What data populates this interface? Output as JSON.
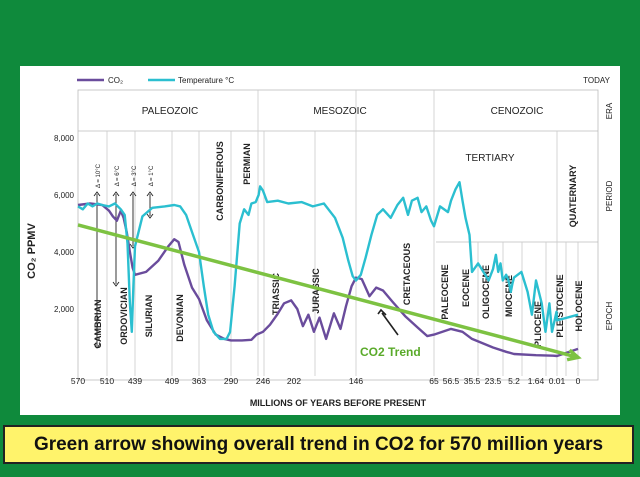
{
  "caption": "Green arrow showing overall trend in CO2 for 570 million years",
  "chart_data": {
    "type": "line",
    "ylabel": "CO₂ PPMV",
    "xlabel": "MILLIONS OF YEARS BEFORE PRESENT",
    "ylim": [
      0,
      8000
    ],
    "yticks": [
      "2,000",
      "4,000",
      "6,000",
      "8,000"
    ],
    "ytick_values": [
      2000,
      4000,
      6000,
      8000
    ],
    "xticks": [
      "570",
      "510",
      "439",
      "409",
      "363",
      "290",
      "246",
      "202",
      "146",
      "65",
      "56.5",
      "35.5",
      "23.5",
      "5.2",
      "1.64",
      "0.01",
      "0"
    ],
    "today_label": "TODAY",
    "right_labels": [
      "ERA",
      "PERIOD",
      "EPOCH"
    ],
    "eras": [
      "PALEOZOIC",
      "MESOZOIC",
      "CENOZOIC"
    ],
    "periods": [
      "CAMBRIAN",
      "ORDOVICIAN",
      "SILURIAN",
      "DEVONIAN",
      "CARBONIFEROUS",
      "PERMIAN",
      "TRIASSIC",
      "JURASSIC",
      "CRETACEOUS",
      "TERTIARY",
      "QUATERNARY"
    ],
    "epochs": [
      "PALEOCENE",
      "EOCENE",
      "OLIGOCENE",
      "MIOCENE",
      "PLIOCENE",
      "PLEISTOCENE",
      "HOLOCENE"
    ],
    "temp_annotations": [
      "Δ = 10°C",
      "Δ = 6°C",
      "Δ = 3°C",
      "Δ = 1°C"
    ],
    "trend_label": "CO2 Trend",
    "colors": {
      "co2": "#6a4c9c",
      "temperature": "#2bbfd0",
      "trend": "#7dc242",
      "trend_label": "#5aaa2a"
    },
    "series": [
      {
        "name": "CO₂",
        "points": [
          [
            570,
            5650
          ],
          [
            545,
            5700
          ],
          [
            520,
            5650
          ],
          [
            505,
            5450
          ],
          [
            495,
            5250
          ],
          [
            485,
            5100
          ],
          [
            475,
            5450
          ],
          [
            468,
            5200
          ],
          [
            460,
            4700
          ],
          [
            452,
            4000
          ],
          [
            445,
            3450
          ],
          [
            439,
            3200
          ],
          [
            430,
            3300
          ],
          [
            420,
            3700
          ],
          [
            412,
            4200
          ],
          [
            405,
            4450
          ],
          [
            398,
            4350
          ],
          [
            388,
            3550
          ],
          [
            375,
            2750
          ],
          [
            363,
            2350
          ],
          [
            345,
            1600
          ],
          [
            325,
            1100
          ],
          [
            305,
            950
          ],
          [
            290,
            900
          ],
          [
            275,
            900
          ],
          [
            262,
            920
          ],
          [
            255,
            1100
          ],
          [
            246,
            1200
          ],
          [
            236,
            1450
          ],
          [
            226,
            1800
          ],
          [
            216,
            2200
          ],
          [
            206,
            2300
          ],
          [
            199,
            2000
          ],
          [
            194,
            1400
          ],
          [
            189,
            1800
          ],
          [
            184,
            1200
          ],
          [
            179,
            1700
          ],
          [
            173,
            950
          ],
          [
            166,
            1850
          ],
          [
            160,
            1300
          ],
          [
            155,
            2100
          ],
          [
            150,
            2800
          ],
          [
            146,
            3100
          ],
          [
            140,
            3050
          ],
          [
            132,
            2450
          ],
          [
            125,
            2750
          ],
          [
            118,
            2650
          ],
          [
            108,
            2250
          ],
          [
            95,
            1750
          ],
          [
            82,
            1350
          ],
          [
            72,
            1050
          ],
          [
            65,
            1100
          ],
          [
            56.5,
            1300
          ],
          [
            45,
            1200
          ],
          [
            35.5,
            950
          ],
          [
            23.5,
            650
          ],
          [
            12,
            500
          ],
          [
            5.2,
            420
          ],
          [
            1.64,
            380
          ],
          [
            0.3,
            360
          ],
          [
            0.01,
            350
          ],
          [
            0,
            600
          ]
        ]
      },
      {
        "name": "Temperature °C",
        "points": [
          [
            570,
            5600
          ],
          [
            560,
            5500
          ],
          [
            550,
            5700
          ],
          [
            540,
            5600
          ],
          [
            530,
            5700
          ],
          [
            520,
            5650
          ],
          [
            505,
            5600
          ],
          [
            490,
            5700
          ],
          [
            475,
            5500
          ],
          [
            465,
            5300
          ],
          [
            458,
            4300
          ],
          [
            452,
            2200
          ],
          [
            447,
            1200
          ],
          [
            443,
            2800
          ],
          [
            439,
            4200
          ],
          [
            433,
            5250
          ],
          [
            425,
            5550
          ],
          [
            415,
            5600
          ],
          [
            405,
            5650
          ],
          [
            395,
            5600
          ],
          [
            385,
            5300
          ],
          [
            375,
            4700
          ],
          [
            363,
            4000
          ],
          [
            352,
            2800
          ],
          [
            342,
            1800
          ],
          [
            330,
            1200
          ],
          [
            315,
            950
          ],
          [
            300,
            950
          ],
          [
            292,
            1200
          ],
          [
            285,
            2800
          ],
          [
            278,
            5000
          ],
          [
            272,
            5500
          ],
          [
            266,
            5300
          ],
          [
            262,
            5700
          ],
          [
            256,
            5750
          ],
          [
            252,
            6000
          ],
          [
            250,
            6300
          ],
          [
            246,
            6150
          ],
          [
            240,
            5750
          ],
          [
            225,
            5800
          ],
          [
            210,
            5700
          ],
          [
            195,
            5750
          ],
          [
            185,
            5600
          ],
          [
            175,
            5700
          ],
          [
            165,
            5200
          ],
          [
            158,
            4500
          ],
          [
            153,
            3700
          ],
          [
            149,
            3150
          ],
          [
            146,
            3000
          ],
          [
            141,
            3200
          ],
          [
            136,
            3800
          ],
          [
            130,
            4600
          ],
          [
            124,
            5300
          ],
          [
            118,
            5500
          ],
          [
            110,
            5200
          ],
          [
            103,
            5650
          ],
          [
            97,
            5900
          ],
          [
            92,
            5300
          ],
          [
            88,
            5800
          ],
          [
            82,
            5900
          ],
          [
            78,
            5400
          ],
          [
            73,
            5600
          ],
          [
            68,
            5100
          ],
          [
            65,
            4900
          ],
          [
            62,
            5600
          ],
          [
            58,
            5400
          ],
          [
            56.5,
            5800
          ],
          [
            52,
            6200
          ],
          [
            48,
            6450
          ],
          [
            45,
            5800
          ],
          [
            42,
            5200
          ],
          [
            38,
            4600
          ],
          [
            35.5,
            3300
          ],
          [
            32,
            3600
          ],
          [
            29,
            3300
          ],
          [
            26,
            3000
          ],
          [
            23.5,
            3400
          ],
          [
            21,
            3900
          ],
          [
            19,
            3300
          ],
          [
            17,
            3600
          ],
          [
            15,
            3000
          ],
          [
            12,
            3200
          ],
          [
            10,
            3000
          ],
          [
            8,
            2600
          ],
          [
            6.5,
            2900
          ],
          [
            5.2,
            3100
          ],
          [
            4,
            3300
          ],
          [
            3,
            2600
          ],
          [
            2.3,
            1800
          ],
          [
            1.64,
            3000
          ],
          [
            1.2,
            2200
          ],
          [
            0.9,
            1200
          ],
          [
            0.6,
            2200
          ],
          [
            0.4,
            1200
          ],
          [
            0.2,
            1600
          ],
          [
            0.05,
            1900
          ],
          [
            0.01,
            1600
          ],
          [
            0,
            1800
          ]
        ]
      },
      {
        "name": "CO2 Trend",
        "points": [
          [
            570,
            4950
          ],
          [
            0,
            300
          ]
        ]
      }
    ]
  }
}
